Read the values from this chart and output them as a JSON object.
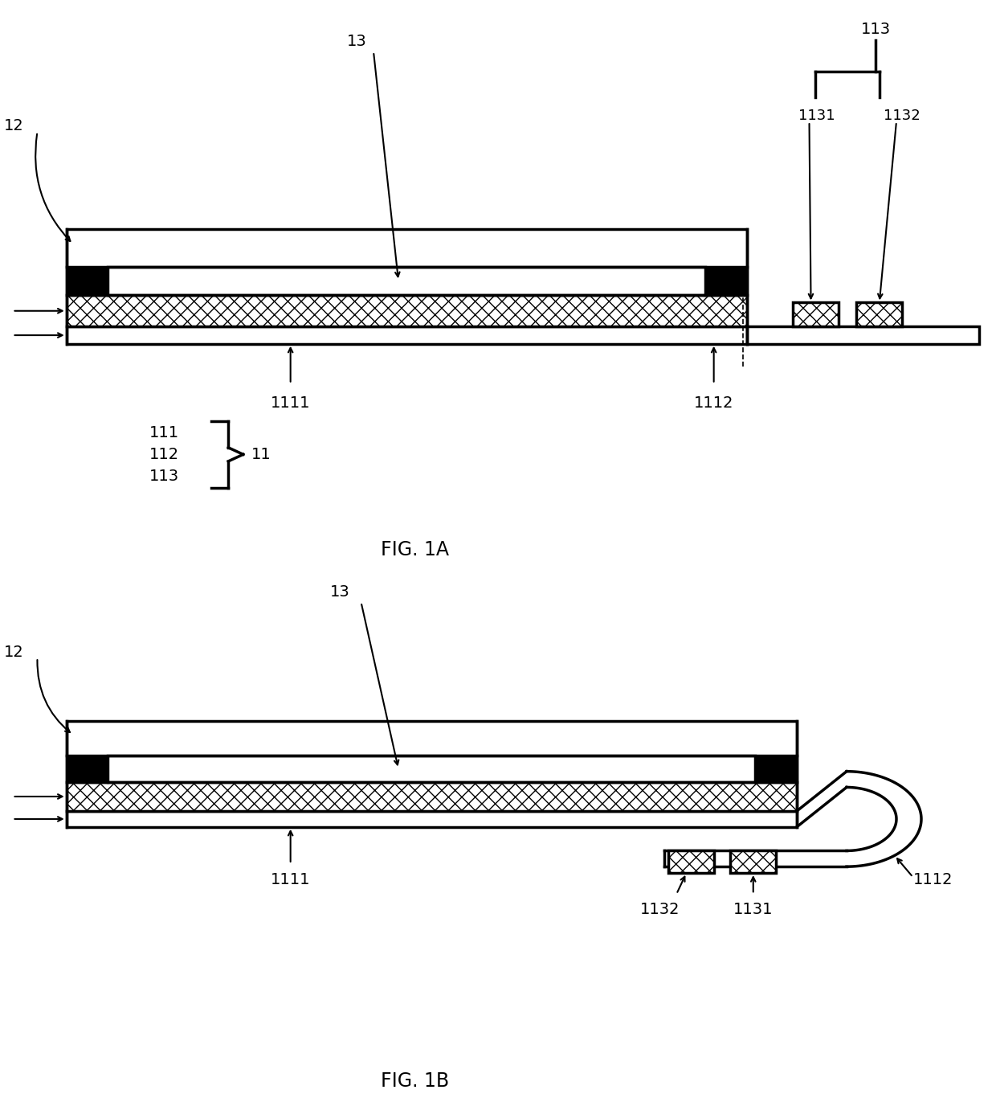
{
  "fig_title_1": "FIG. 1A",
  "fig_title_2": "FIG. 1B",
  "bg_color": "#ffffff",
  "line_color": "#000000",
  "black_fill": "#000000",
  "hatch_pattern": "xx",
  "white_fill": "#ffffff"
}
